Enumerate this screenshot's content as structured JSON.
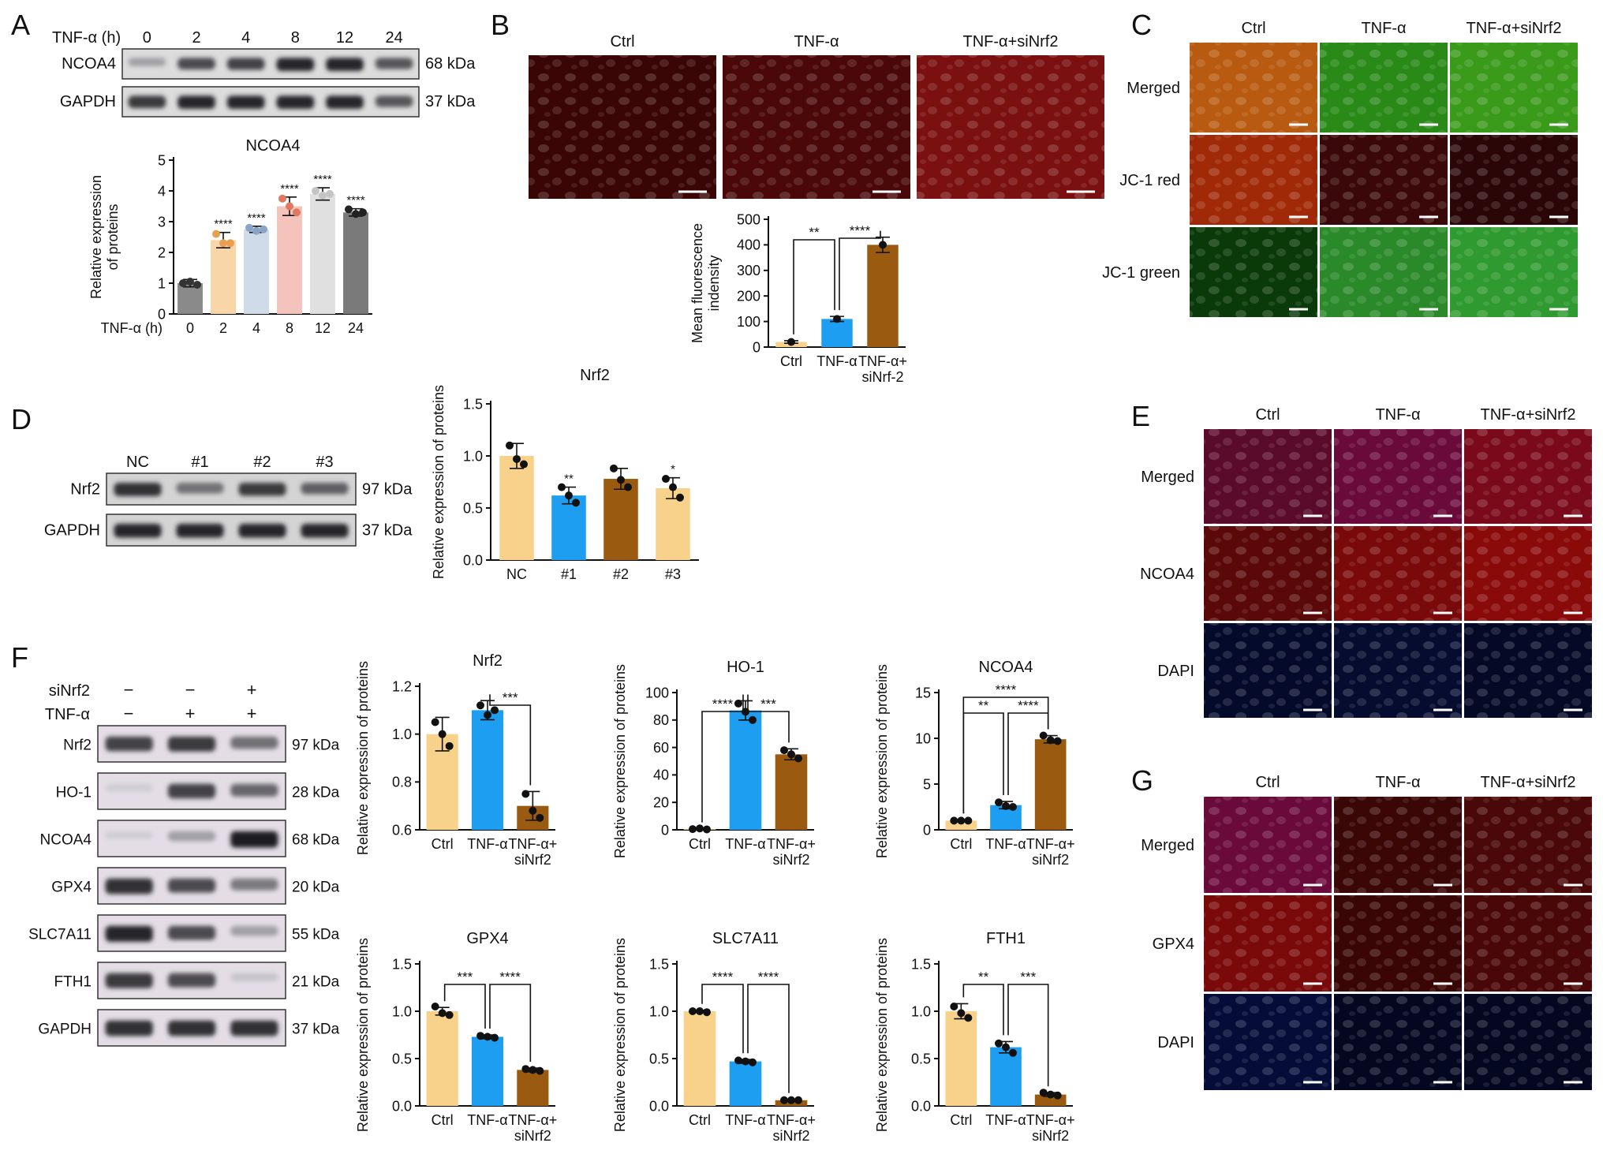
{
  "panels": {
    "A": {
      "letter": "A",
      "blot": {
        "header_label": "TNF-α (h)",
        "lanes": [
          "0",
          "2",
          "4",
          "8",
          "12",
          "24"
        ],
        "rows": [
          {
            "protein": "NCOA4",
            "kda": "68 kDa",
            "intensity": [
              0.3,
              0.75,
              0.8,
              0.95,
              0.95,
              0.7
            ]
          },
          {
            "protein": "GAPDH",
            "kda": "37 kDa",
            "intensity": [
              0.85,
              0.95,
              0.95,
              0.95,
              0.95,
              0.7
            ]
          }
        ]
      }
    },
    "B": {
      "letter": "B",
      "image_titles": [
        "Ctrl",
        "TNF-α",
        "TNF-α+siNrf2"
      ],
      "image_colors": [
        "#3a0505",
        "#4a0808",
        "#7a1010"
      ]
    },
    "C": {
      "letter": "C",
      "col_titles": [
        "Ctrl",
        "TNF-α",
        "TNF-α+siNrf2"
      ],
      "row_titles": [
        "Merged",
        "JC-1 red",
        "JC-1 green"
      ],
      "cell_colors": [
        [
          "#b85a10",
          "#2a8a18",
          "#3a9a1a"
        ],
        [
          "#a02a08",
          "#3a0808",
          "#2a0606"
        ],
        [
          "#0a3a0a",
          "#2a8a2a",
          "#2f9a2f"
        ]
      ]
    },
    "D": {
      "letter": "D",
      "blot": {
        "lanes": [
          "NC",
          "#1",
          "#2",
          "#3"
        ],
        "rows": [
          {
            "protein": "Nrf2",
            "kda": "97 kDa",
            "intensity": [
              0.9,
              0.55,
              0.85,
              0.65
            ]
          },
          {
            "protein": "GAPDH",
            "kda": "37 kDa",
            "intensity": [
              0.95,
              0.95,
              0.95,
              0.95
            ]
          }
        ]
      }
    },
    "E": {
      "letter": "E",
      "col_titles": [
        "Ctrl",
        "TNF-α",
        "TNF-α+siNrf2"
      ],
      "row_titles": [
        "Merged",
        "NCOA4",
        "DAPI"
      ],
      "cell_colors": [
        [
          "#5a0a2a",
          "#6a0a3a",
          "#7a0a1a"
        ],
        [
          "#5a0808",
          "#7a0a0a",
          "#8a0a0a"
        ],
        [
          "#040a2a",
          "#050c30",
          "#040a26"
        ]
      ]
    },
    "F": {
      "letter": "F",
      "blot": {
        "treatments": [
          {
            "label": "siNrf2",
            "signs": [
              "−",
              "−",
              "+"
            ]
          },
          {
            "label": "TNF-α",
            "signs": [
              "−",
              "+",
              "+"
            ]
          }
        ],
        "rows": [
          {
            "protein": "Nrf2",
            "kda": "97 kDa",
            "intensity": [
              0.8,
              0.85,
              0.55
            ]
          },
          {
            "protein": "HO-1",
            "kda": "28 kDa",
            "intensity": [
              0.05,
              0.8,
              0.6
            ]
          },
          {
            "protein": "NCOA4",
            "kda": "68 kDa",
            "intensity": [
              0.05,
              0.3,
              1.0
            ]
          },
          {
            "protein": "GPX4",
            "kda": "20 kDa",
            "intensity": [
              0.9,
              0.75,
              0.5
            ]
          },
          {
            "protein": "SLC7A11",
            "kda": "55 kDa",
            "intensity": [
              0.95,
              0.75,
              0.3
            ]
          },
          {
            "protein": "FTH1",
            "kda": "21 kDa",
            "intensity": [
              0.85,
              0.75,
              0.1
            ]
          },
          {
            "protein": "GAPDH",
            "kda": "37 kDa",
            "intensity": [
              0.9,
              0.9,
              0.9
            ]
          }
        ]
      }
    },
    "G": {
      "letter": "G",
      "col_titles": [
        "Ctrl",
        "TNF-α",
        "TNF-α+siNrf2"
      ],
      "row_titles": [
        "Merged",
        "GPX4",
        "DAPI"
      ],
      "cell_colors": [
        [
          "#6a0a3a",
          "#3a0606",
          "#4a0808"
        ],
        [
          "#7a0a0a",
          "#3a0505",
          "#4a0707"
        ],
        [
          "#050c38",
          "#030720",
          "#030720"
        ]
      ]
    }
  },
  "chart_data": [
    {
      "id": "A",
      "type": "bar",
      "title": "NCOA4",
      "ylabel": "Relative expression of proteins",
      "xlabel": "TNF-α (h)",
      "categories": [
        "0",
        "2",
        "4",
        "8",
        "12",
        "24"
      ],
      "values": [
        1.0,
        2.4,
        2.75,
        3.5,
        3.9,
        3.3
      ],
      "errors": [
        0.12,
        0.25,
        0.1,
        0.3,
        0.2,
        0.12
      ],
      "points": [
        [
          1.0,
          1.05,
          0.95
        ],
        [
          2.6,
          2.3,
          2.3
        ],
        [
          2.8,
          2.7,
          2.75
        ],
        [
          3.75,
          3.5,
          3.3
        ],
        [
          4.0,
          3.85,
          3.9
        ],
        [
          3.4,
          3.25,
          3.3
        ]
      ],
      "colors": [
        "#8a8a8a",
        "#f8d6a8",
        "#cfdbe8",
        "#f4c4bc",
        "#e0e0e0",
        "#7a7a7a"
      ],
      "dotcolors": [
        "#333333",
        "#e8a050",
        "#8aa4c8",
        "#e07860",
        "#c4c4c4",
        "#222222"
      ],
      "ylim": [
        0,
        5
      ],
      "yticks": [
        "0",
        "1",
        "2",
        "3",
        "4",
        "5"
      ],
      "sig": [
        "",
        "****",
        "****",
        "****",
        "****",
        "****"
      ]
    },
    {
      "id": "B",
      "type": "bar",
      "ylabel": "Mean fluorescence indensity",
      "categories": [
        "Ctrl",
        "TNF-α",
        "TNF-α+ siNrf-2"
      ],
      "values": [
        20,
        110,
        400
      ],
      "errors": [
        5,
        10,
        30
      ],
      "points": [
        [
          20
        ],
        [
          110
        ],
        [
          400
        ]
      ],
      "colors": [
        "#f8d28a",
        "#1e9ef0",
        "#9a5a10"
      ],
      "ylim": [
        0,
        500
      ],
      "yticks": [
        "0",
        "100",
        "200",
        "300",
        "400",
        "500"
      ],
      "brackets": [
        {
          "from": 0,
          "to": 1,
          "label": "**"
        },
        {
          "from": 1,
          "to": 2,
          "label": "****"
        }
      ]
    },
    {
      "id": "D",
      "type": "bar",
      "title": "Nrf2",
      "ylabel": "Relative expression of proteins",
      "categories": [
        "NC",
        "#1",
        "#2",
        "#3"
      ],
      "values": [
        1.0,
        0.62,
        0.78,
        0.69
      ],
      "errors": [
        0.12,
        0.08,
        0.1,
        0.1
      ],
      "points": [
        [
          1.1,
          0.97,
          0.92
        ],
        [
          0.7,
          0.62,
          0.55
        ],
        [
          0.88,
          0.77,
          0.7
        ],
        [
          0.78,
          0.7,
          0.6
        ]
      ],
      "colors": [
        "#f8d28a",
        "#1e9ef0",
        "#9a5a10",
        "#f8d28a"
      ],
      "ylim": [
        0,
        1.5
      ],
      "yticks": [
        "0.0",
        "0.5",
        "1.0",
        "1.5"
      ],
      "sig": [
        "",
        "**",
        "",
        "*"
      ]
    },
    {
      "id": "F-Nrf2",
      "type": "bar",
      "title": "Nrf2",
      "ylabel": "Relative expression of proteins",
      "categories": [
        "Ctrl",
        "TNF-α",
        "TNF-α+ siNrf2"
      ],
      "values": [
        1.0,
        1.1,
        0.7
      ],
      "errors": [
        0.07,
        0.04,
        0.06
      ],
      "points": [
        [
          1.05,
          1.0,
          0.95
        ],
        [
          1.12,
          1.08,
          1.1
        ],
        [
          0.75,
          0.68,
          0.65
        ]
      ],
      "colors": [
        "#f8d28a",
        "#1e9ef0",
        "#9a5a10"
      ],
      "ylim": [
        0.6,
        1.2
      ],
      "yticks": [
        "0.6",
        "0.8",
        "1.0",
        "1.2"
      ],
      "brackets": [
        {
          "from": 1,
          "to": 2,
          "label": "***"
        }
      ]
    },
    {
      "id": "F-HO1",
      "type": "bar",
      "title": "HO-1",
      "ylabel": "Relative expression of proteins",
      "categories": [
        "Ctrl",
        "TNF-α",
        "TNF-α+ siNrf2"
      ],
      "values": [
        0.5,
        87,
        55
      ],
      "errors": [
        0.3,
        7,
        4
      ],
      "points": [
        [
          0.5,
          1,
          0.3
        ],
        [
          92,
          86,
          80
        ],
        [
          58,
          55,
          52
        ]
      ],
      "colors": [
        "#f8d28a",
        "#1e9ef0",
        "#9a5a10"
      ],
      "ylim": [
        0,
        100
      ],
      "yticks": [
        "0",
        "20",
        "40",
        "60",
        "80",
        "100"
      ],
      "brackets": [
        {
          "from": 0,
          "to": 1,
          "label": "****"
        },
        {
          "from": 1,
          "to": 2,
          "label": "***"
        }
      ]
    },
    {
      "id": "F-NCOA4",
      "type": "bar",
      "title": "NCOA4",
      "ylabel": "Relative expression of proteins",
      "categories": [
        "Ctrl",
        "TNF-α",
        "TNF-α+ siNrf2"
      ],
      "values": [
        1.0,
        2.7,
        9.9
      ],
      "errors": [
        0.1,
        0.4,
        0.4
      ],
      "points": [
        [
          1.0,
          1.0,
          1.0
        ],
        [
          3.0,
          2.6,
          2.5
        ],
        [
          10.3,
          9.8,
          9.7
        ]
      ],
      "colors": [
        "#f8d28a",
        "#1e9ef0",
        "#9a5a10"
      ],
      "ylim": [
        0,
        15
      ],
      "yticks": [
        "0",
        "5",
        "10",
        "15"
      ],
      "brackets": [
        {
          "from": 0,
          "to": 1,
          "label": "**"
        },
        {
          "from": 1,
          "to": 2,
          "label": "****"
        },
        {
          "from": 0,
          "to": 2,
          "label": "****"
        }
      ]
    },
    {
      "id": "F-GPX4",
      "type": "bar",
      "title": "GPX4",
      "ylabel": "Relative expression of proteins",
      "categories": [
        "Ctrl",
        "TNF-α",
        "TNF-α+ siNrf2"
      ],
      "values": [
        1.0,
        0.73,
        0.38
      ],
      "errors": [
        0.04,
        0.02,
        0.02
      ],
      "points": [
        [
          1.05,
          0.98,
          0.96
        ],
        [
          0.74,
          0.73,
          0.72
        ],
        [
          0.39,
          0.38,
          0.37
        ]
      ],
      "colors": [
        "#f8d28a",
        "#1e9ef0",
        "#9a5a10"
      ],
      "ylim": [
        0,
        1.5
      ],
      "yticks": [
        "0.0",
        "0.5",
        "1.0",
        "1.5"
      ],
      "brackets": [
        {
          "from": 0,
          "to": 1,
          "label": "***"
        },
        {
          "from": 1,
          "to": 2,
          "label": "****"
        }
      ]
    },
    {
      "id": "F-SLC7A11",
      "type": "bar",
      "title": "SLC7A11",
      "ylabel": "Relative expression of proteins",
      "categories": [
        "Ctrl",
        "TNF-α",
        "TNF-α+ siNrf2"
      ],
      "values": [
        1.0,
        0.47,
        0.06
      ],
      "errors": [
        0.01,
        0.02,
        0.01
      ],
      "points": [
        [
          1.0,
          1.0,
          0.99
        ],
        [
          0.48,
          0.47,
          0.46
        ],
        [
          0.06,
          0.06,
          0.06
        ]
      ],
      "colors": [
        "#f8d28a",
        "#1e9ef0",
        "#9a5a10"
      ],
      "ylim": [
        0,
        1.5
      ],
      "yticks": [
        "0.0",
        "0.5",
        "1.0",
        "1.5"
      ],
      "brackets": [
        {
          "from": 0,
          "to": 1,
          "label": "****"
        },
        {
          "from": 1,
          "to": 2,
          "label": "****"
        }
      ]
    },
    {
      "id": "F-FTH1",
      "type": "bar",
      "title": "FTH1",
      "ylabel": "Relative expression of proteins",
      "categories": [
        "Ctrl",
        "TNF-α",
        "TNF-α+ siNrf2"
      ],
      "values": [
        1.0,
        0.62,
        0.12
      ],
      "errors": [
        0.08,
        0.06,
        0.02
      ],
      "points": [
        [
          1.05,
          0.98,
          0.93
        ],
        [
          0.66,
          0.62,
          0.56
        ],
        [
          0.14,
          0.12,
          0.11
        ]
      ],
      "colors": [
        "#f8d28a",
        "#1e9ef0",
        "#9a5a10"
      ],
      "ylim": [
        0,
        1.5
      ],
      "yticks": [
        "0.0",
        "0.5",
        "1.0",
        "1.5"
      ],
      "brackets": [
        {
          "from": 0,
          "to": 1,
          "label": "**"
        },
        {
          "from": 1,
          "to": 2,
          "label": "***"
        }
      ]
    }
  ]
}
